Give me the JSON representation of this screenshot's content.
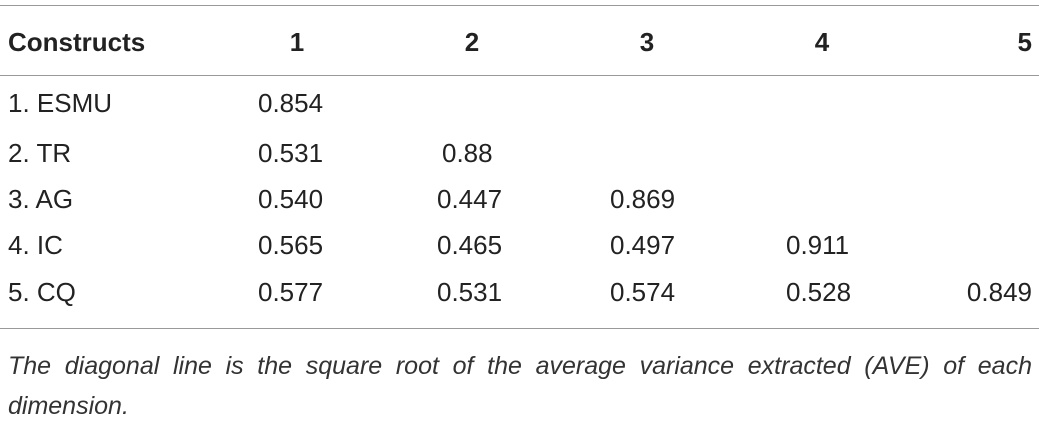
{
  "table": {
    "header": [
      "Constructs",
      "1",
      "2",
      "3",
      "4",
      "5"
    ],
    "rows": [
      [
        "1. ESMU",
        "0.854",
        null,
        null,
        null,
        null
      ],
      [
        "2. TR",
        "0.531",
        "0.88",
        null,
        null,
        null
      ],
      [
        "3. AG",
        "0.540",
        "0.447",
        "0.869",
        null,
        null
      ],
      [
        "4. IC",
        "0.565",
        "0.465",
        "0.497",
        "0.911",
        null
      ],
      [
        "5. CQ",
        "0.577",
        "0.531",
        "0.574",
        "0.528",
        "0.849"
      ]
    ]
  },
  "footnote": "The diagonal line is the square root of the average variance extracted (AVE) of each dimension."
}
